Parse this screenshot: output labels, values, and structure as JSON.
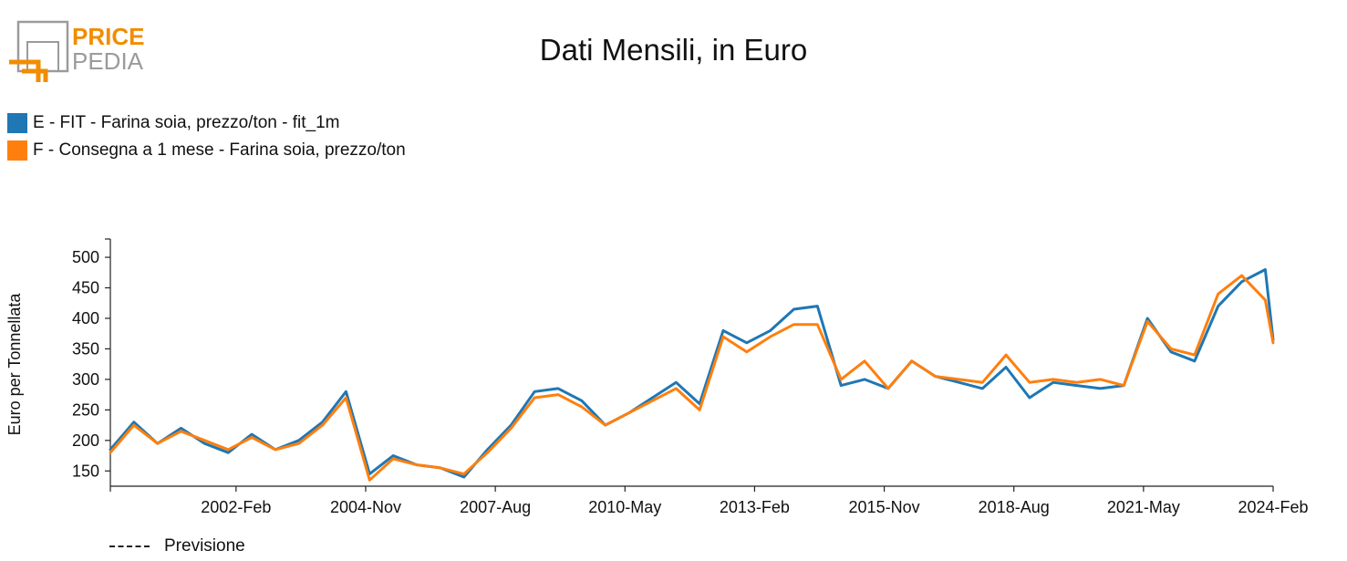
{
  "logo": {
    "line1": "PRICE",
    "line2": "PEDIA"
  },
  "colors": {
    "series_e": "#1f77b4",
    "series_f": "#ff7f0e",
    "logo_orange": "#f28c00",
    "logo_gray": "#9b9b9b"
  },
  "forecast_label": "Previsione",
  "chart_data": {
    "type": "line",
    "title": "Dati Mensili, in Euro",
    "ylabel": "Euro per Tonnellata",
    "xlabel": "",
    "ylim": [
      125,
      530
    ],
    "yticks": [
      150,
      200,
      250,
      300,
      350,
      400,
      450,
      500
    ],
    "xticks": [
      "2002-Feb",
      "2004-Nov",
      "2007-Aug",
      "2010-May",
      "2013-Feb",
      "2015-Nov",
      "2018-Aug",
      "2021-May",
      "2024-Feb"
    ],
    "legend_position": "top-left",
    "grid": false,
    "x": [
      "1999-Jun",
      "1999-Dec",
      "2000-Jun",
      "2000-Dec",
      "2001-Jun",
      "2001-Dec",
      "2002-Jun",
      "2002-Dec",
      "2003-Jun",
      "2003-Dec",
      "2004-Jun",
      "2004-Dec",
      "2005-Jun",
      "2005-Dec",
      "2006-Jun",
      "2006-Dec",
      "2007-Jun",
      "2007-Dec",
      "2008-Jun",
      "2008-Dec",
      "2009-Jun",
      "2009-Dec",
      "2010-Jun",
      "2010-Dec",
      "2011-Jun",
      "2011-Dec",
      "2012-Jun",
      "2012-Dec",
      "2013-Jun",
      "2013-Dec",
      "2014-Jun",
      "2014-Dec",
      "2015-Jun",
      "2015-Dec",
      "2016-Jun",
      "2016-Dec",
      "2017-Jun",
      "2017-Dec",
      "2018-Jun",
      "2018-Dec",
      "2019-Jun",
      "2019-Dec",
      "2020-Jun",
      "2020-Dec",
      "2021-Jun",
      "2021-Dec",
      "2022-Jun",
      "2022-Dec",
      "2023-Jun",
      "2023-Dec",
      "2024-Feb"
    ],
    "series": [
      {
        "name": "E - FIT - Farina soia, prezzo/ton - fit_1m",
        "values": [
          185,
          230,
          195,
          220,
          195,
          180,
          210,
          185,
          200,
          230,
          280,
          145,
          175,
          160,
          155,
          140,
          185,
          225,
          280,
          285,
          265,
          225,
          245,
          270,
          295,
          260,
          380,
          360,
          380,
          415,
          420,
          290,
          300,
          285,
          330,
          305,
          295,
          285,
          320,
          270,
          295,
          290,
          285,
          290,
          400,
          345,
          330,
          420,
          460,
          480,
          365
        ]
      },
      {
        "name": "F - Consegna a 1 mese - Farina soia, prezzo/ton",
        "values": [
          180,
          225,
          195,
          215,
          200,
          185,
          205,
          185,
          195,
          225,
          270,
          135,
          170,
          160,
          155,
          145,
          180,
          220,
          270,
          275,
          255,
          225,
          245,
          265,
          285,
          250,
          370,
          345,
          370,
          390,
          390,
          300,
          330,
          285,
          330,
          305,
          300,
          295,
          340,
          295,
          300,
          295,
          300,
          290,
          395,
          350,
          340,
          440,
          470,
          430,
          360
        ]
      }
    ]
  }
}
